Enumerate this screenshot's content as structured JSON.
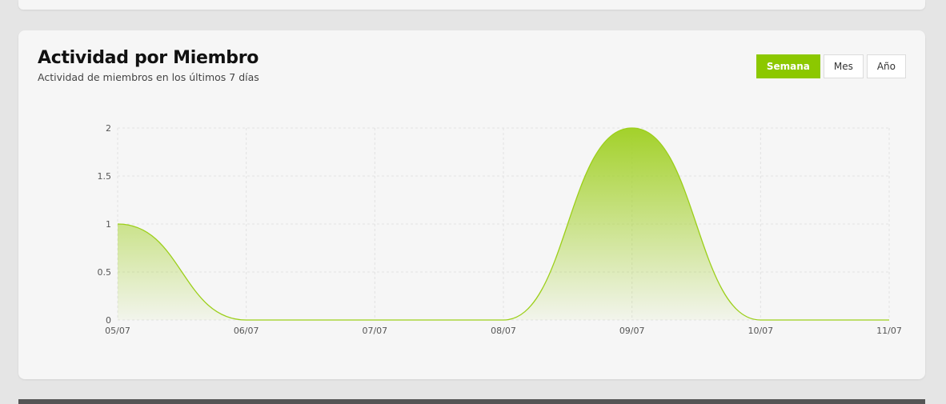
{
  "panel": {
    "title": "Actividad por Miembro",
    "subtitle": "Actividad de miembros en los últimos 7 días"
  },
  "range_buttons": [
    {
      "label": "Semana",
      "active": true
    },
    {
      "label": "Mes",
      "active": false
    },
    {
      "label": "Año",
      "active": false
    }
  ],
  "colors": {
    "accent": "#8cc800",
    "line": "#9ccf1a",
    "fill_top": "#a3d12a"
  },
  "chart_data": {
    "type": "area",
    "x": [
      "05/07",
      "06/07",
      "07/07",
      "08/07",
      "09/07",
      "10/07",
      "11/07"
    ],
    "series": [
      {
        "values": [
          1,
          0,
          0,
          0,
          2,
          0,
          0
        ]
      }
    ],
    "y_ticks": [
      "0",
      "0.5",
      "1",
      "1.5",
      "2"
    ],
    "ylim": [
      0,
      2
    ],
    "grid": true,
    "curve": "smooth"
  }
}
